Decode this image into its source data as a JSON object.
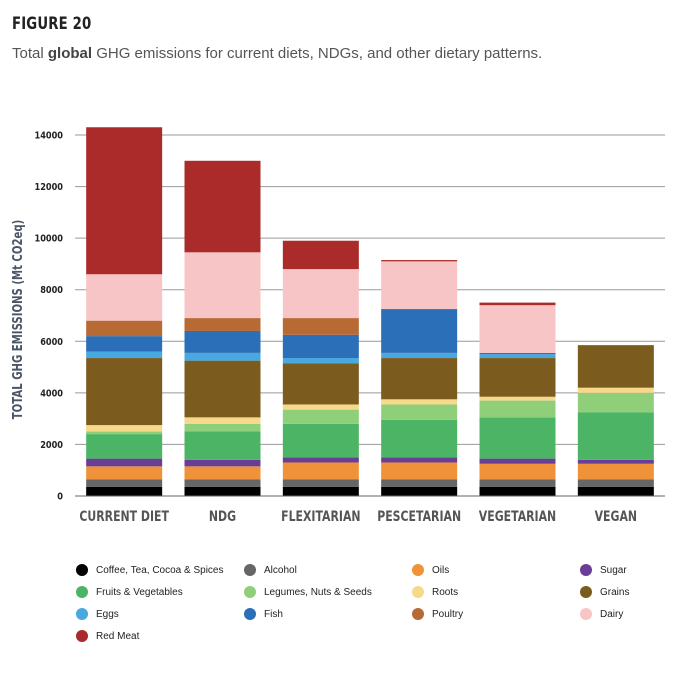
{
  "figure_label": "FIGURE 20",
  "subtitle": {
    "pre": "Total ",
    "bold": "global",
    "post": " GHG emissions for current diets, NDGs, and other dietary patterns."
  },
  "chart_data": {
    "type": "bar",
    "stacked": true,
    "title": "",
    "xlabel": "",
    "ylabel": "TOTAL GHG EMISSIONS (Mt CO2eq)",
    "ylim": [
      0,
      14000
    ],
    "yticks": [
      0,
      2000,
      4000,
      6000,
      8000,
      10000,
      12000,
      14000
    ],
    "ytick_labels": [
      "0",
      "2000",
      "4000",
      "6000",
      "8000",
      "10000",
      "12000",
      "14000"
    ],
    "grid": true,
    "legend_position": "bottom",
    "categories": [
      "CURRENT DIET",
      "NDG",
      "FLEXITARIAN",
      "PESCETARIAN",
      "VEGETARIAN",
      "VEGAN"
    ],
    "series": [
      {
        "name": "Coffee, Tea, Cocoa & Spices",
        "color": "#000000",
        "values": [
          350,
          350,
          350,
          350,
          350,
          350
        ]
      },
      {
        "name": "Alcohol",
        "color": "#666666",
        "values": [
          300,
          300,
          300,
          300,
          300,
          300
        ]
      },
      {
        "name": "Oils",
        "color": "#f0923a",
        "values": [
          500,
          500,
          650,
          650,
          600,
          600
        ]
      },
      {
        "name": "Sugar",
        "color": "#6a3d96",
        "values": [
          300,
          250,
          200,
          200,
          200,
          150
        ]
      },
      {
        "name": "Fruits & Vegetables",
        "color": "#4cb565",
        "values": [
          950,
          1100,
          1300,
          1450,
          1600,
          1850
        ]
      },
      {
        "name": "Legumes, Nuts & Seeds",
        "color": "#8fcf7a",
        "values": [
          100,
          300,
          550,
          600,
          650,
          750
        ]
      },
      {
        "name": "Roots",
        "color": "#f6d98b",
        "values": [
          250,
          250,
          200,
          200,
          150,
          200
        ]
      },
      {
        "name": "Grains",
        "color": "#7b5c1e",
        "values": [
          2600,
          2200,
          1600,
          1600,
          1500,
          1650
        ]
      },
      {
        "name": "Eggs",
        "color": "#48a8e0",
        "values": [
          250,
          300,
          200,
          200,
          150,
          0
        ]
      },
      {
        "name": "Fish",
        "color": "#2a6fb7",
        "values": [
          600,
          850,
          900,
          1700,
          50,
          0
        ]
      },
      {
        "name": "Poultry",
        "color": "#b86a35",
        "values": [
          600,
          500,
          650,
          0,
          0,
          0
        ]
      },
      {
        "name": "Dairy",
        "color": "#f7c5c5",
        "values": [
          1800,
          2550,
          1900,
          1850,
          1850,
          0
        ]
      },
      {
        "name": "Red Meat",
        "color": "#ab2b2b",
        "values": [
          5700,
          3550,
          1100,
          50,
          100,
          0
        ]
      }
    ]
  }
}
